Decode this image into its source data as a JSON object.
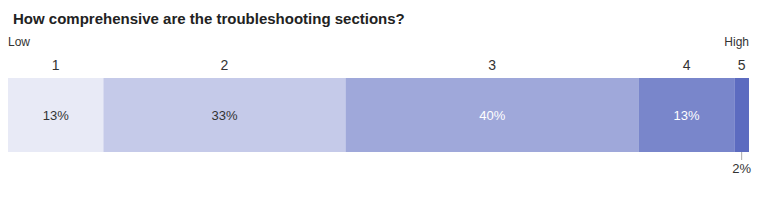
{
  "chart_data": {
    "type": "bar",
    "orientation": "horizontal",
    "stacked": true,
    "title": "How comprehensive are the troubleshooting sections?",
    "annotations": [
      {
        "text": "Low",
        "x": 0
      },
      {
        "text": "High",
        "x": 101
      }
    ],
    "series": [
      {
        "name": "1",
        "color": "#e8eaf6",
        "values": [
          13
        ],
        "value_labels": [
          "13%"
        ]
      },
      {
        "name": "2",
        "color": "#c5cae9",
        "values": [
          33
        ],
        "value_labels": [
          "33%"
        ]
      },
      {
        "name": "3",
        "color": "#9fa8da",
        "values": [
          40
        ],
        "value_labels": [
          "40%"
        ]
      },
      {
        "name": "4",
        "color": "#7986cb",
        "values": [
          13
        ],
        "value_labels": [
          "13%"
        ]
      },
      {
        "name": "5",
        "color": "#5c6bc0",
        "values": [
          2
        ],
        "value_labels": [
          "2%"
        ]
      }
    ],
    "xlim": [
      0,
      101
    ],
    "data_labels": true,
    "tick_labels": false,
    "grid": false
  }
}
